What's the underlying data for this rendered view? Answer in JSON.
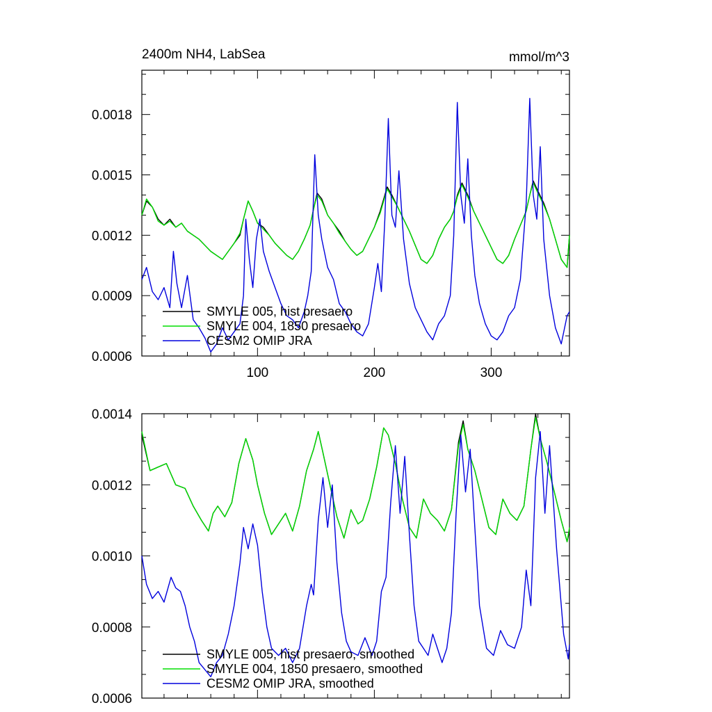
{
  "chart_data": [
    {
      "type": "line",
      "title_left": "2400m NH4, LabSea",
      "title_right": "mmol/m^3",
      "xlabel": "",
      "ylabel": "",
      "xlim": [
        1,
        367
      ],
      "ylim": [
        0.0006,
        0.00202
      ],
      "x_ticks": [
        100,
        200,
        300
      ],
      "x_tick_labels": [
        "100",
        "200",
        "300"
      ],
      "y_ticks": [
        0.0006,
        0.0009,
        0.0012,
        0.0015,
        0.0018
      ],
      "y_tick_labels": [
        "0.0006",
        "0.0009",
        "0.0012",
        "0.0015",
        "0.0018"
      ],
      "legend_position": "bottom-left",
      "series": [
        {
          "name": "SMYLE 005, hist presaero",
          "color": "#000000",
          "x": [
            1,
            5,
            10,
            15,
            20,
            25,
            30,
            35,
            40,
            45,
            50,
            55,
            60,
            65,
            70,
            75,
            80,
            85,
            88,
            92,
            96,
            100,
            105,
            110,
            115,
            120,
            125,
            130,
            135,
            140,
            145,
            148,
            151,
            155,
            160,
            165,
            170,
            175,
            180,
            185,
            190,
            195,
            200,
            205,
            208,
            211,
            215,
            220,
            225,
            230,
            235,
            240,
            245,
            250,
            255,
            260,
            265,
            268,
            271,
            275,
            280,
            285,
            290,
            295,
            300,
            305,
            310,
            315,
            320,
            325,
            330,
            333,
            336,
            340,
            345,
            350,
            355,
            360,
            365,
            367
          ],
          "y": [
            0.0013,
            0.00137,
            0.00134,
            0.00128,
            0.00125,
            0.00128,
            0.00124,
            0.00126,
            0.00122,
            0.0012,
            0.00118,
            0.00115,
            0.00112,
            0.0011,
            0.00108,
            0.00112,
            0.00116,
            0.0012,
            0.00128,
            0.00137,
            0.00132,
            0.00126,
            0.00124,
            0.0012,
            0.00116,
            0.00113,
            0.0011,
            0.00108,
            0.00112,
            0.00118,
            0.00125,
            0.00133,
            0.00141,
            0.00138,
            0.0013,
            0.00126,
            0.00122,
            0.00117,
            0.00113,
            0.0011,
            0.00112,
            0.00118,
            0.00124,
            0.00132,
            0.00138,
            0.00144,
            0.0014,
            0.00134,
            0.00128,
            0.00122,
            0.00115,
            0.00108,
            0.00106,
            0.0011,
            0.00118,
            0.00124,
            0.00128,
            0.00132,
            0.0014,
            0.00146,
            0.0014,
            0.00132,
            0.00126,
            0.0012,
            0.00114,
            0.00108,
            0.00106,
            0.0011,
            0.00118,
            0.00125,
            0.00132,
            0.0014,
            0.00147,
            0.00142,
            0.00136,
            0.00128,
            0.00118,
            0.00108,
            0.00104,
            0.0012
          ]
        },
        {
          "name": "SMYLE 004, 1850 presaero",
          "color": "#00dd00",
          "x": [
            1,
            5,
            10,
            15,
            20,
            25,
            30,
            35,
            40,
            45,
            50,
            55,
            60,
            65,
            70,
            75,
            80,
            85,
            88,
            92,
            96,
            100,
            105,
            110,
            115,
            120,
            125,
            130,
            135,
            140,
            145,
            148,
            151,
            155,
            160,
            165,
            170,
            175,
            180,
            185,
            190,
            195,
            200,
            205,
            208,
            211,
            215,
            220,
            225,
            230,
            235,
            240,
            245,
            250,
            255,
            260,
            265,
            268,
            271,
            275,
            280,
            285,
            290,
            295,
            300,
            305,
            310,
            315,
            320,
            325,
            330,
            333,
            336,
            340,
            345,
            350,
            355,
            360,
            365,
            367
          ],
          "y": [
            0.0013,
            0.00138,
            0.00134,
            0.00127,
            0.00125,
            0.00127,
            0.00124,
            0.00126,
            0.00122,
            0.0012,
            0.00118,
            0.00115,
            0.00112,
            0.0011,
            0.00108,
            0.00112,
            0.00116,
            0.00121,
            0.00128,
            0.00137,
            0.00132,
            0.00126,
            0.00123,
            0.0012,
            0.00116,
            0.00113,
            0.0011,
            0.00108,
            0.00112,
            0.00118,
            0.00125,
            0.00133,
            0.0014,
            0.00137,
            0.0013,
            0.00126,
            0.00121,
            0.00117,
            0.00113,
            0.0011,
            0.00112,
            0.00118,
            0.00124,
            0.00131,
            0.00137,
            0.00143,
            0.00139,
            0.00134,
            0.00128,
            0.00122,
            0.00115,
            0.00108,
            0.00106,
            0.0011,
            0.00118,
            0.00124,
            0.00128,
            0.00132,
            0.00139,
            0.00145,
            0.00139,
            0.00132,
            0.00126,
            0.0012,
            0.00114,
            0.00108,
            0.00106,
            0.0011,
            0.00118,
            0.00125,
            0.00132,
            0.0014,
            0.00146,
            0.00141,
            0.00135,
            0.00128,
            0.00118,
            0.00108,
            0.00104,
            0.0012
          ]
        },
        {
          "name": "CESM2 OMIP JRA",
          "color": "#0000dd",
          "x": [
            1,
            5,
            10,
            15,
            20,
            25,
            28,
            31,
            35,
            40,
            45,
            50,
            55,
            60,
            65,
            70,
            75,
            80,
            85,
            88,
            90,
            93,
            96,
            99,
            102,
            105,
            110,
            115,
            120,
            125,
            130,
            135,
            140,
            143,
            146,
            149,
            152,
            155,
            160,
            165,
            170,
            175,
            180,
            185,
            190,
            195,
            200,
            203,
            206,
            209,
            212,
            215,
            218,
            221,
            225,
            230,
            235,
            240,
            245,
            250,
            255,
            260,
            265,
            268,
            271,
            274,
            277,
            280,
            283,
            286,
            290,
            295,
            300,
            305,
            310,
            315,
            320,
            325,
            330,
            333,
            336,
            339,
            342,
            345,
            350,
            355,
            360,
            365,
            367
          ],
          "y": [
            0.00098,
            0.00104,
            0.00092,
            0.00088,
            0.00094,
            0.00084,
            0.00112,
            0.00096,
            0.00084,
            0.001,
            0.00078,
            0.00074,
            0.00069,
            0.00062,
            0.00066,
            0.00074,
            0.00068,
            0.00072,
            0.00076,
            0.0009,
            0.00128,
            0.00108,
            0.00094,
            0.00118,
            0.00128,
            0.00112,
            0.00102,
            0.00094,
            0.00086,
            0.0008,
            0.00078,
            0.00074,
            0.00082,
            0.0009,
            0.00102,
            0.0016,
            0.0013,
            0.00118,
            0.00104,
            0.00098,
            0.00086,
            0.00082,
            0.00076,
            0.00072,
            0.0007,
            0.00076,
            0.00094,
            0.00106,
            0.00092,
            0.00128,
            0.00178,
            0.0013,
            0.00124,
            0.00152,
            0.00118,
            0.00096,
            0.00084,
            0.00078,
            0.00072,
            0.00068,
            0.00076,
            0.0008,
            0.0009,
            0.0012,
            0.00186,
            0.0014,
            0.00126,
            0.00158,
            0.0012,
            0.001,
            0.00086,
            0.00076,
            0.0007,
            0.00068,
            0.00072,
            0.0008,
            0.00084,
            0.00098,
            0.00136,
            0.00188,
            0.0014,
            0.00128,
            0.00164,
            0.00118,
            0.0009,
            0.00074,
            0.00066,
            0.0008,
            0.00082
          ]
        }
      ]
    },
    {
      "type": "line",
      "xlim": [
        1,
        367
      ],
      "ylim": [
        0.0006,
        0.0014
      ],
      "x_ticks": [
        100,
        200,
        300
      ],
      "y_ticks": [
        0.0006,
        0.0008,
        0.001,
        0.0012,
        0.0014
      ],
      "y_tick_labels": [
        "0.0006",
        "0.0008",
        "0.0010",
        "0.0012",
        "0.0014"
      ],
      "legend_position": "bottom-left",
      "series": [
        {
          "name": "SMYLE 005, hist presaero, smoothed",
          "color": "#000000",
          "x": [
            1,
            8,
            15,
            22,
            30,
            38,
            45,
            52,
            58,
            62,
            66,
            72,
            78,
            84,
            90,
            96,
            100,
            106,
            112,
            118,
            124,
            130,
            136,
            142,
            148,
            152,
            156,
            162,
            168,
            174,
            180,
            186,
            190,
            196,
            202,
            208,
            212,
            218,
            224,
            230,
            236,
            242,
            248,
            254,
            260,
            266,
            272,
            276,
            280,
            286,
            292,
            298,
            304,
            310,
            316,
            322,
            328,
            334,
            338,
            342,
            348,
            354,
            360,
            365,
            367
          ],
          "y": [
            0.00134,
            0.00124,
            0.00125,
            0.00126,
            0.0012,
            0.00119,
            0.00114,
            0.0011,
            0.00107,
            0.00112,
            0.00114,
            0.00111,
            0.00115,
            0.00126,
            0.00133,
            0.00127,
            0.0012,
            0.00112,
            0.00106,
            0.00109,
            0.00112,
            0.00107,
            0.00114,
            0.00124,
            0.0013,
            0.00135,
            0.00129,
            0.0012,
            0.00111,
            0.00105,
            0.00113,
            0.00109,
            0.0011,
            0.00116,
            0.00125,
            0.00136,
            0.00134,
            0.00126,
            0.00116,
            0.00108,
            0.00105,
            0.00116,
            0.00112,
            0.0011,
            0.00107,
            0.00113,
            0.00132,
            0.00138,
            0.0013,
            0.00124,
            0.00116,
            0.00108,
            0.00106,
            0.00116,
            0.00112,
            0.0011,
            0.00114,
            0.0013,
            0.0014,
            0.00133,
            0.00126,
            0.00118,
            0.0011,
            0.00104,
            0.00107
          ]
        },
        {
          "name": "SMYLE 004, 1850 presaero, smoothed",
          "color": "#00dd00",
          "x": [
            1,
            8,
            15,
            22,
            30,
            38,
            45,
            52,
            58,
            62,
            66,
            72,
            78,
            84,
            90,
            96,
            100,
            106,
            112,
            118,
            124,
            130,
            136,
            142,
            148,
            152,
            156,
            162,
            168,
            174,
            180,
            186,
            190,
            196,
            202,
            208,
            212,
            218,
            224,
            230,
            236,
            242,
            248,
            254,
            260,
            266,
            272,
            276,
            280,
            286,
            292,
            298,
            304,
            310,
            316,
            322,
            328,
            334,
            338,
            342,
            348,
            354,
            360,
            365,
            367
          ],
          "y": [
            0.00135,
            0.00124,
            0.00125,
            0.00126,
            0.0012,
            0.00119,
            0.00114,
            0.0011,
            0.00107,
            0.00112,
            0.00114,
            0.00111,
            0.00115,
            0.00126,
            0.00133,
            0.00127,
            0.0012,
            0.00112,
            0.00106,
            0.00109,
            0.00112,
            0.00107,
            0.00114,
            0.00124,
            0.0013,
            0.00135,
            0.00129,
            0.0012,
            0.00111,
            0.00105,
            0.00113,
            0.00109,
            0.0011,
            0.00116,
            0.00125,
            0.00136,
            0.00134,
            0.00126,
            0.00116,
            0.00108,
            0.00105,
            0.00116,
            0.00112,
            0.0011,
            0.00107,
            0.00113,
            0.00131,
            0.00137,
            0.0013,
            0.00124,
            0.00116,
            0.00108,
            0.00106,
            0.00116,
            0.00112,
            0.0011,
            0.00114,
            0.0013,
            0.00139,
            0.00133,
            0.00126,
            0.00118,
            0.0011,
            0.00104,
            0.00108
          ]
        },
        {
          "name": "CESM2 OMIP JRA, smoothed",
          "color": "#0000dd",
          "x": [
            1,
            5,
            10,
            15,
            20,
            26,
            30,
            34,
            38,
            42,
            46,
            50,
            55,
            60,
            65,
            70,
            75,
            80,
            85,
            88,
            92,
            96,
            100,
            104,
            108,
            112,
            118,
            124,
            130,
            136,
            142,
            146,
            148,
            152,
            156,
            160,
            164,
            168,
            172,
            176,
            180,
            186,
            192,
            198,
            202,
            206,
            210,
            214,
            218,
            222,
            226,
            230,
            234,
            238,
            242,
            246,
            250,
            254,
            258,
            262,
            266,
            270,
            274,
            278,
            282,
            286,
            290,
            296,
            302,
            308,
            314,
            320,
            326,
            330,
            334,
            338,
            342,
            346,
            350,
            356,
            362,
            366,
            367
          ],
          "y": [
            0.001,
            0.00092,
            0.00088,
            0.0009,
            0.00087,
            0.00094,
            0.00091,
            0.0009,
            0.00086,
            0.0008,
            0.00076,
            0.0007,
            0.00068,
            0.00066,
            0.0007,
            0.00072,
            0.00078,
            0.00086,
            0.00098,
            0.00108,
            0.00102,
            0.00109,
            0.00103,
            0.0009,
            0.0008,
            0.00074,
            0.00072,
            0.00074,
            0.0007,
            0.00074,
            0.00086,
            0.00092,
            0.00089,
            0.0011,
            0.00122,
            0.00108,
            0.0012,
            0.00098,
            0.00084,
            0.00076,
            0.00073,
            0.00072,
            0.00077,
            0.00072,
            0.00076,
            0.0009,
            0.00094,
            0.00115,
            0.00131,
            0.00112,
            0.00128,
            0.00106,
            0.00086,
            0.00076,
            0.00074,
            0.00072,
            0.00078,
            0.00074,
            0.0007,
            0.00074,
            0.00084,
            0.00112,
            0.00134,
            0.00118,
            0.0013,
            0.00108,
            0.00086,
            0.00074,
            0.00072,
            0.00079,
            0.00075,
            0.00074,
            0.0008,
            0.00096,
            0.00086,
            0.00122,
            0.00135,
            0.00112,
            0.00131,
            0.00102,
            0.00078,
            0.00071,
            0.00075
          ]
        }
      ]
    }
  ]
}
